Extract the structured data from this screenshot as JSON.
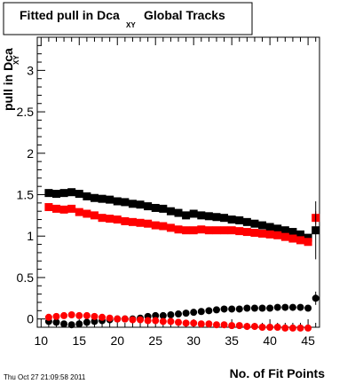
{
  "title": {
    "main": "Fitted pull in Dca",
    "subscript": "XY",
    "suffix": "Global Tracks"
  },
  "timestamp": "Thu Oct 27 21:09:58 2011",
  "chart_data": {
    "type": "scatter",
    "title": "Fitted pull in Dca XY Global Tracks",
    "xlabel": "No. of Fit Points",
    "ylabel": "pull in Dca",
    "ylabel_subscript": "XY",
    "xlim": [
      9.5,
      46.5
    ],
    "ylim": [
      -0.1,
      3.4
    ],
    "xticks": [
      10,
      15,
      20,
      25,
      30,
      35,
      40,
      45
    ],
    "yticks": [
      0,
      0.5,
      1,
      1.5,
      2,
      2.5,
      3
    ],
    "ytick_labels": [
      "0",
      "0.5",
      "1",
      "1.5",
      "2",
      "2.5",
      "3"
    ],
    "grid": false,
    "series": [
      {
        "color": "#000000",
        "marker": "square",
        "x": [
          11,
          12,
          13,
          14,
          15,
          16,
          17,
          18,
          19,
          20,
          21,
          22,
          23,
          24,
          25,
          26,
          27,
          28,
          29,
          30,
          31,
          32,
          33,
          34,
          35,
          36,
          37,
          38,
          39,
          40,
          41,
          42,
          43,
          44,
          45
        ],
        "y": [
          1.52,
          1.51,
          1.52,
          1.53,
          1.51,
          1.48,
          1.46,
          1.45,
          1.44,
          1.42,
          1.41,
          1.39,
          1.38,
          1.36,
          1.34,
          1.33,
          1.3,
          1.28,
          1.25,
          1.27,
          1.25,
          1.24,
          1.23,
          1.22,
          1.2,
          1.19,
          1.17,
          1.15,
          1.13,
          1.11,
          1.09,
          1.07,
          1.05,
          1.02,
          0.98
        ]
      },
      {
        "color": "#ff0000",
        "marker": "square",
        "x": [
          11,
          12,
          13,
          14,
          15,
          16,
          17,
          18,
          19,
          20,
          21,
          22,
          23,
          24,
          25,
          26,
          27,
          28,
          29,
          30,
          31,
          32,
          33,
          34,
          35,
          36,
          37,
          38,
          39,
          40,
          41,
          42,
          43,
          44,
          45
        ],
        "y": [
          1.35,
          1.33,
          1.32,
          1.33,
          1.29,
          1.27,
          1.25,
          1.22,
          1.21,
          1.2,
          1.18,
          1.17,
          1.16,
          1.15,
          1.13,
          1.12,
          1.1,
          1.08,
          1.07,
          1.07,
          1.08,
          1.07,
          1.07,
          1.07,
          1.07,
          1.06,
          1.05,
          1.04,
          1.03,
          1.02,
          1.01,
          0.99,
          0.97,
          0.95,
          0.93
        ]
      },
      {
        "color": "#000000",
        "marker": "circle",
        "x": [
          11,
          12,
          13,
          14,
          15,
          16,
          17,
          18,
          19,
          20,
          21,
          22,
          23,
          24,
          25,
          26,
          27,
          28,
          29,
          30,
          31,
          32,
          33,
          34,
          35,
          36,
          37,
          38,
          39,
          40,
          41,
          42,
          43,
          44,
          45
        ],
        "y": [
          -0.03,
          -0.04,
          -0.06,
          -0.07,
          -0.06,
          -0.04,
          -0.03,
          -0.02,
          -0.01,
          0.0,
          0.0,
          0.0,
          0.01,
          0.03,
          0.04,
          0.04,
          0.05,
          0.06,
          0.07,
          0.08,
          0.09,
          0.1,
          0.11,
          0.12,
          0.12,
          0.12,
          0.13,
          0.13,
          0.13,
          0.13,
          0.14,
          0.14,
          0.14,
          0.14,
          0.13
        ]
      },
      {
        "color": "#ff0000",
        "marker": "circle",
        "x": [
          11,
          12,
          13,
          14,
          15,
          16,
          17,
          18,
          19,
          20,
          21,
          22,
          23,
          24,
          25,
          26,
          27,
          28,
          29,
          30,
          31,
          32,
          33,
          34,
          35,
          36,
          37,
          38,
          39,
          40,
          41,
          42,
          43,
          44,
          45
        ],
        "y": [
          0.02,
          0.03,
          0.04,
          0.05,
          0.04,
          0.04,
          0.03,
          0.02,
          0.01,
          0.0,
          0.0,
          -0.01,
          -0.01,
          -0.02,
          -0.02,
          -0.03,
          -0.03,
          -0.04,
          -0.05,
          -0.05,
          -0.06,
          -0.06,
          -0.07,
          -0.07,
          -0.08,
          -0.08,
          -0.09,
          -0.09,
          -0.1,
          -0.1,
          -0.1,
          -0.11,
          -0.11,
          -0.11,
          -0.11
        ]
      },
      {
        "color": "#ff0000",
        "marker": "square",
        "x": [
          46
        ],
        "y": [
          1.22
        ],
        "err": [
          0.08
        ]
      },
      {
        "color": "#000000",
        "marker": "square",
        "x": [
          46
        ],
        "y": [
          1.07
        ],
        "err": [
          0.35
        ]
      },
      {
        "color": "#000000",
        "marker": "circle",
        "x": [
          46
        ],
        "y": [
          0.25
        ],
        "err": [
          0.08
        ]
      }
    ]
  }
}
